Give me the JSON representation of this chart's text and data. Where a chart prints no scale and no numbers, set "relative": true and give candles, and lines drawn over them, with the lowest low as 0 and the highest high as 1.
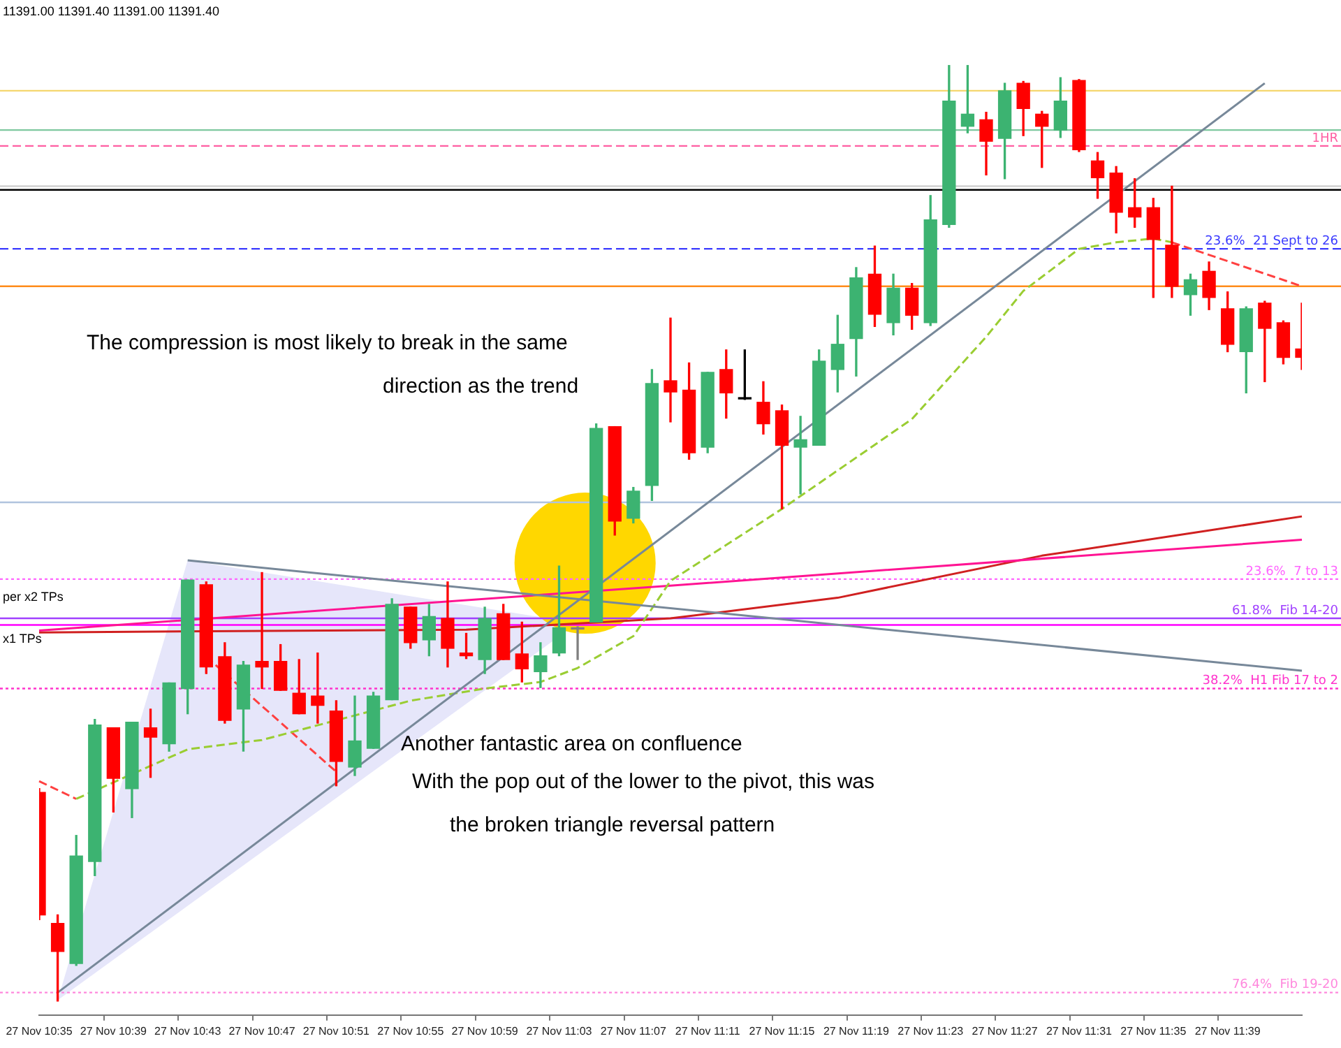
{
  "chart_data": {
    "type": "candlestick",
    "relative": true,
    "categories": [
      "27 Nov 10:35",
      null,
      null,
      null,
      "27 Nov 10:39",
      null,
      null,
      null,
      "27 Nov 10:43",
      null,
      null,
      null,
      "27 Nov 10:47",
      null,
      null,
      null,
      "27 Nov 10:51",
      null,
      null,
      null,
      "27 Nov 10:55",
      null,
      null,
      null,
      "27 Nov 10:59",
      null,
      null,
      null,
      "27 Nov 11:03",
      null,
      null,
      null,
      "27 Nov 11:07",
      null,
      null,
      null,
      "27 Nov 11:11",
      null,
      null,
      null,
      "27 Nov 11:15",
      null,
      null,
      null,
      "27 Nov 11:19",
      null,
      null,
      null,
      "27 Nov 11:23",
      null,
      null,
      null,
      "27 Nov 11:27",
      null,
      null,
      null,
      "27 Nov 11:31",
      null,
      null,
      null,
      "27 Nov 11:35",
      null,
      null,
      null,
      "27 Nov 11:39",
      null,
      null,
      null,
      null
    ],
    "ohlc": [
      [
        0.223,
        0.227,
        0.087,
        0.092
      ],
      [
        0.083,
        0.092,
        0,
        0.053
      ],
      [
        0.04,
        0.177,
        0.038,
        0.155
      ],
      [
        0.149,
        0.301,
        0.134,
        0.295
      ],
      [
        0.292,
        0.292,
        0.202,
        0.238
      ],
      [
        0.227,
        0.298,
        0.196,
        0.298
      ],
      [
        0.292,
        0.312,
        0.239,
        0.282
      ],
      [
        0.275,
        0.34,
        0.267,
        0.34
      ],
      [
        0.334,
        0.45,
        0.307,
        0.45
      ],
      [
        0.445,
        0.448,
        0.35,
        0.357
      ],
      [
        0.368,
        0.383,
        0.297,
        0.3
      ],
      [
        0.312,
        0.363,
        0.267,
        0.359
      ],
      [
        0.363,
        0.458,
        0.334,
        0.357
      ],
      [
        0.363,
        0.381,
        0.332,
        0.332
      ],
      [
        0.329,
        0.365,
        0.307,
        0.307
      ],
      [
        0.326,
        0.372,
        0.297,
        0.316
      ],
      [
        0.31,
        0.321,
        0.23,
        0.256
      ],
      [
        0.25,
        0.326,
        0.241,
        0.278
      ],
      [
        0.27,
        0.33,
        0.27,
        0.326
      ],
      [
        0.322,
        0.43,
        0.322,
        0.424
      ],
      [
        0.421,
        0.421,
        0.377,
        0.383
      ],
      [
        0.386,
        0.424,
        0.369,
        0.411
      ],
      [
        0.409,
        0.448,
        0.357,
        0.377
      ],
      [
        0.372,
        0.393,
        0.366,
        0.369
      ],
      [
        0.365,
        0.421,
        0.35,
        0.409
      ],
      [
        0.414,
        0.424,
        0.365,
        0.365
      ],
      [
        0.371,
        0.405,
        0.341,
        0.355
      ],
      [
        0.352,
        0.383,
        0.335,
        0.369
      ],
      [
        0.372,
        0.465,
        0.369,
        0.399
      ],
      [
        0.399,
        0.4,
        0.365,
        0.399
      ],
      [
        0.405,
        0.617,
        0.405,
        0.612
      ],
      [
        0.614,
        0.614,
        0.498,
        0.513
      ],
      [
        0.516,
        0.549,
        0.511,
        0.545
      ],
      [
        0.551,
        0.675,
        0.535,
        0.66
      ],
      [
        0.663,
        0.73,
        0.619,
        0.651
      ],
      [
        0.653,
        0.682,
        0.579,
        0.586
      ],
      [
        0.592,
        0.672,
        0.586,
        0.672
      ],
      [
        0.675,
        0.696,
        0.623,
        0.65
      ],
      [
        0.645,
        0.696,
        0.643,
        0.645
      ],
      [
        0.64,
        0.662,
        0.606,
        0.617
      ],
      [
        0.631,
        0.637,
        0.526,
        0.594
      ],
      [
        0.592,
        0.625,
        0.542,
        0.6
      ],
      [
        0.594,
        0.696,
        0.594,
        0.684
      ],
      [
        0.675,
        0.733,
        0.651,
        0.702
      ],
      [
        0.708,
        0.784,
        0.668,
        0.773
      ],
      [
        0.777,
        0.807,
        0.721,
        0.734
      ],
      [
        0.725,
        0.777,
        0.712,
        0.762
      ],
      [
        0.762,
        0.767,
        0.718,
        0.733
      ],
      [
        0.725,
        0.861,
        0.722,
        0.835
      ],
      [
        0.83,
        1,
        0.827,
        0.962
      ],
      [
        0.935,
        1,
        0.928,
        0.948
      ],
      [
        0.942,
        0.95,
        0.883,
        0.919
      ],
      [
        0.922,
        0.981,
        0.879,
        0.973
      ],
      [
        0.981,
        0.983,
        0.925,
        0.954
      ],
      [
        0.948,
        0.951,
        0.891,
        0.935
      ],
      [
        0.931,
        0.987,
        0.923,
        0.962
      ],
      [
        0.984,
        0.985,
        0.908,
        0.91
      ],
      [
        0.898,
        0.907,
        0.858,
        0.88
      ],
      [
        0.885,
        0.892,
        0.821,
        0.843
      ],
      [
        0.848,
        0.879,
        0.827,
        0.838
      ],
      [
        0.848,
        0.858,
        0.752,
        0.814
      ],
      [
        0.808,
        0.871,
        0.752,
        0.764
      ],
      [
        0.755,
        0.777,
        0.733,
        0.771
      ],
      [
        0.78,
        0.79,
        0.739,
        0.752
      ],
      [
        0.74,
        0.758,
        0.694,
        0.702
      ],
      [
        0.694,
        0.742,
        0.65,
        0.74
      ],
      [
        0.746,
        0.748,
        0.662,
        0.719
      ],
      [
        0.725,
        0.727,
        0.681,
        0.688
      ],
      [
        0.697,
        0.746,
        0.675,
        0.688
      ]
    ],
    "colors": [
      "#ff0000",
      "#ff0000",
      "#3cb371",
      "#3cb371",
      "#ff0000",
      "#3cb371",
      "#ff0000",
      "#3cb371",
      "#3cb371",
      "#ff0000",
      "#ff0000",
      "#3cb371",
      "#ff0000",
      "#ff0000",
      "#ff0000",
      "#ff0000",
      "#ff0000",
      "#3cb371",
      "#3cb371",
      "#3cb371",
      "#ff0000",
      "#3cb371",
      "#ff0000",
      "#ff0000",
      "#3cb371",
      "#ff0000",
      "#ff0000",
      "#3cb371",
      "#3cb371",
      "#808080",
      "#3cb371",
      "#ff0000",
      "#3cb371",
      "#3cb371",
      "#ff0000",
      "#ff0000",
      "#3cb371",
      "#ff0000",
      "#000000",
      "#ff0000",
      "#ff0000",
      "#3cb371",
      "#3cb371",
      "#3cb371",
      "#3cb371",
      "#ff0000",
      "#3cb371",
      "#ff0000",
      "#3cb371",
      "#3cb371",
      "#3cb371",
      "#ff0000",
      "#3cb371",
      "#ff0000",
      "#ff0000",
      "#3cb371",
      "#ff0000",
      "#ff0000",
      "#ff0000",
      "#ff0000",
      "#ff0000",
      "#ff0000",
      "#3cb371",
      "#ff0000",
      "#ff0000",
      "#3cb371",
      "#ff0000",
      "#ff0000",
      "#ff0000"
    ],
    "series": [
      {
        "type": "line",
        "color": "#778899",
        "line_style": "solid",
        "values": [
          null,
          0.009,
          null,
          null,
          null,
          null,
          null,
          null,
          null,
          null,
          null,
          null,
          null,
          null,
          null,
          null,
          null,
          null,
          null,
          null,
          null,
          null,
          null,
          null,
          null,
          null,
          null,
          null,
          null,
          null,
          null,
          null,
          null,
          null,
          null,
          null,
          null,
          null,
          null,
          null,
          null,
          null,
          null,
          null,
          null,
          null,
          null,
          null,
          null,
          null,
          null,
          null,
          null,
          null,
          null,
          null,
          null,
          null,
          null,
          null,
          null,
          null,
          null,
          null,
          null,
          null,
          0.981,
          null,
          null
        ]
      },
      {
        "type": "line",
        "color": "#778899",
        "line_style": "solid",
        "values": [
          null,
          null,
          null,
          null,
          null,
          null,
          null,
          null,
          0.471,
          null,
          null,
          null,
          null,
          null,
          null,
          null,
          null,
          null,
          null,
          null,
          null,
          null,
          null,
          null,
          null,
          null,
          null,
          null,
          null,
          null,
          null,
          null,
          null,
          null,
          null,
          null,
          null,
          null,
          null,
          null,
          null,
          null,
          null,
          null,
          null,
          null,
          null,
          null,
          null,
          null,
          null,
          null,
          null,
          null,
          null,
          null,
          null,
          null,
          null,
          null,
          null,
          null,
          null,
          null,
          null,
          null,
          null,
          null,
          0.353
        ]
      },
      {
        "type": "line",
        "color": "#9acd32",
        "line_style": "dashed",
        "values": [
          null,
          null,
          0.216,
          null,
          null,
          null,
          null,
          null,
          0.269,
          null,
          null,
          null,
          0.279,
          null,
          null,
          null,
          null,
          null,
          null,
          null,
          0.321,
          null,
          null,
          null,
          0.334,
          null,
          null,
          0.341,
          null,
          0.356,
          null,
          null,
          0.39,
          null,
          0.449,
          null,
          null,
          null,
          null,
          null,
          0.526,
          null,
          null,
          null,
          null,
          null,
          null,
          0.622,
          null,
          null,
          null,
          0.71,
          null,
          0.759,
          null,
          null,
          0.804,
          null,
          0.811,
          null,
          0.815,
          0.811,
          null,
          null,
          null,
          null,
          null,
          null,
          null
        ]
      },
      {
        "type": "line",
        "color": "#ff4040",
        "line_style": "dashed",
        "values": [
          null,
          null,
          null,
          null,
          null,
          null,
          null,
          null,
          null,
          null,
          null,
          null,
          null,
          null,
          null,
          null,
          null,
          null,
          null,
          null,
          null,
          null,
          null,
          null,
          null,
          null,
          null,
          null,
          null,
          null,
          null,
          null,
          null,
          null,
          null,
          null,
          null,
          null,
          null,
          null,
          null,
          null,
          null,
          null,
          null,
          null,
          null,
          null,
          null,
          null,
          null,
          null,
          null,
          null,
          null,
          null,
          null,
          null,
          null,
          null,
          null,
          0.811,
          null,
          null,
          null,
          null,
          null,
          null,
          0.764
        ]
      },
      {
        "type": "line",
        "color": "#ff4040",
        "line_style": "dashed",
        "values": [
          0.235,
          null,
          0.216,
          null,
          null,
          null,
          null,
          null,
          null,
          null,
          null,
          null,
          null,
          null,
          null,
          null,
          null,
          null,
          null,
          null,
          null,
          null,
          null,
          null,
          null,
          null,
          null,
          null,
          null,
          null,
          null,
          null,
          null,
          null,
          null,
          null,
          null,
          null,
          null,
          null,
          null,
          null,
          null,
          null,
          null,
          null,
          null,
          null,
          null,
          null,
          null,
          null,
          null,
          null,
          null,
          null,
          null,
          null,
          null,
          null,
          null,
          null,
          null,
          null,
          null,
          null,
          null,
          null,
          null
        ]
      },
      {
        "type": "line",
        "color": "#ff4040",
        "line_style": "dashed",
        "values": [
          null,
          null,
          null,
          null,
          null,
          null,
          null,
          null,
          null,
          0.368,
          null,
          null,
          null,
          null,
          null,
          null,
          0.245,
          null,
          null,
          null,
          null,
          null,
          null,
          null,
          null,
          null,
          null,
          null,
          null,
          null,
          null,
          null,
          null,
          null,
          null,
          null,
          null,
          null,
          null,
          null,
          null,
          null,
          null,
          null,
          null,
          null,
          null,
          null,
          null,
          null,
          null,
          null,
          null,
          null,
          null,
          null,
          null,
          null,
          null,
          null,
          null,
          null,
          null,
          null,
          null,
          null,
          null,
          null,
          null
        ]
      },
      {
        "type": "line",
        "color": "#ff1493",
        "line_style": "solid",
        "values": [
          0.396,
          null,
          null,
          null,
          null,
          null,
          null,
          null,
          null,
          null,
          null,
          null,
          null,
          null,
          null,
          null,
          null,
          null,
          null,
          null,
          null,
          null,
          null,
          null,
          null,
          null,
          null,
          null,
          null,
          null,
          null,
          null,
          null,
          null,
          0.444,
          null,
          null,
          null,
          null,
          null,
          null,
          null,
          null,
          null,
          null,
          null,
          null,
          null,
          null,
          null,
          null,
          null,
          null,
          null,
          null,
          null,
          null,
          null,
          null,
          null,
          null,
          null,
          null,
          null,
          null,
          null,
          null,
          null,
          0.493
        ]
      },
      {
        "type": "line",
        "color": "#d02020",
        "line_style": "solid",
        "values": [
          0.394,
          null,
          null,
          null,
          null,
          null,
          null,
          null,
          null,
          null,
          null,
          null,
          null,
          null,
          null,
          null,
          null,
          null,
          null,
          null,
          null,
          null,
          null,
          0.397,
          null,
          null,
          null,
          null,
          null,
          null,
          null,
          null,
          null,
          null,
          0.409,
          null,
          null,
          null,
          null,
          null,
          null,
          null,
          null,
          0.431,
          null,
          null,
          null,
          null,
          null,
          null,
          null,
          null,
          null,
          null,
          0.476,
          null,
          null,
          null,
          null,
          null,
          null,
          null,
          null,
          null,
          null,
          null,
          null,
          null,
          0.518
        ]
      }
    ],
    "ref_lines": [
      {
        "axis": "y",
        "value": 0.973,
        "color": "#f5d76e",
        "line_style": "solid"
      },
      {
        "axis": "y",
        "value": 0.931,
        "color": "#7fc8a0",
        "line_style": "solid"
      },
      {
        "axis": "y",
        "value": 0.914,
        "color": "#ff5fa2",
        "line_style": "dashed",
        "label": "1HR"
      },
      {
        "axis": "y",
        "value": 0.871,
        "color": "#d0d0d0",
        "line_style": "solid"
      },
      {
        "axis": "y",
        "value": 0.867,
        "color": "#000000",
        "line_style": "solid"
      },
      {
        "axis": "y",
        "value": 0.804,
        "color": "#3a3aff",
        "line_style": "dashed",
        "label": "23.6%  21 Sept to 26"
      },
      {
        "axis": "y",
        "value": 0.764,
        "color": "#ff8c1a",
        "line_style": "solid"
      },
      {
        "axis": "y",
        "value": 0.533,
        "color": "#b0c4de",
        "line_style": "solid"
      },
      {
        "axis": "y",
        "value": 0.451,
        "color": "#ff66ff",
        "line_style": "dotted",
        "label": "23.6%  7 to 13"
      },
      {
        "axis": "y",
        "value": 0.409,
        "color": "#a040ff",
        "line_style": "solid",
        "label": "61.8%  Fib 14-20"
      },
      {
        "axis": "y",
        "value": 0.402,
        "color": "#ff00ff",
        "line_style": "solid"
      },
      {
        "axis": "y",
        "value": 0.334,
        "color": "#ff33cc",
        "line_style": "dotted",
        "label": "38.2%  H1 Fib 17 to 2"
      },
      {
        "axis": "y",
        "value": 0.009,
        "color": "#ff88dd",
        "line_style": "dotted",
        "label": "76.4%  Fib 19-20"
      }
    ],
    "annotations": [
      "11391.00 11391.40 11391.00 11391.40",
      "per x2 TPs",
      "x1 TPs",
      "The compression is most likely to break in the same",
      "direction as the trend",
      "Another fantastic area on confluence",
      "With the pop out of the lower to the pivot, this was",
      "the broken triangle reversal pattern"
    ]
  }
}
